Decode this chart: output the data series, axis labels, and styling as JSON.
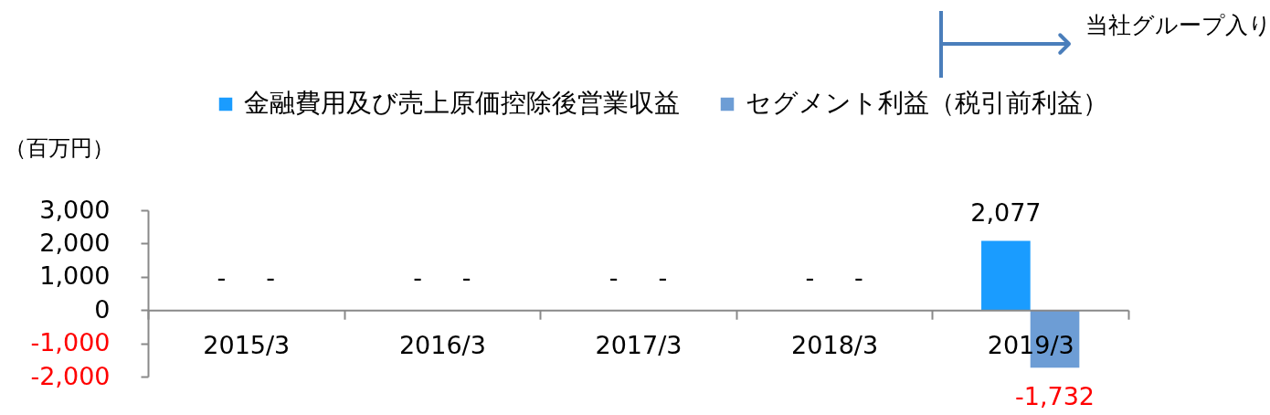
{
  "chart_data": {
    "type": "bar",
    "ylabel": "（百万円）",
    "categories": [
      "2015/3",
      "2016/3",
      "2017/3",
      "2018/3",
      "2019/3"
    ],
    "series": [
      {
        "name": "金融費用及び売上原価控除後営業収益",
        "color": "#1a9cff",
        "values": [
          null,
          null,
          null,
          null,
          2077
        ],
        "value_labels": [
          "-",
          "-",
          "-",
          "-",
          "2,077"
        ]
      },
      {
        "name": "セグメント利益（税引前利益）",
        "color": "#6d9dd5",
        "values": [
          null,
          null,
          null,
          null,
          -1732
        ],
        "value_labels": [
          "-",
          "-",
          "-",
          "-",
          "-1,732"
        ]
      }
    ],
    "ylim": [
      -2000,
      3000
    ],
    "yticks": [
      {
        "value": -2000,
        "label": "-2,000"
      },
      {
        "value": -1000,
        "label": "-1,000"
      },
      0,
      {
        "value": 1000,
        "label": "1,000"
      },
      {
        "value": 2000,
        "label": "2,000"
      },
      {
        "value": 3000,
        "label": "3,000"
      }
    ],
    "grid": false,
    "legend": "top",
    "annotations": [
      "当社グループ入り"
    ]
  }
}
